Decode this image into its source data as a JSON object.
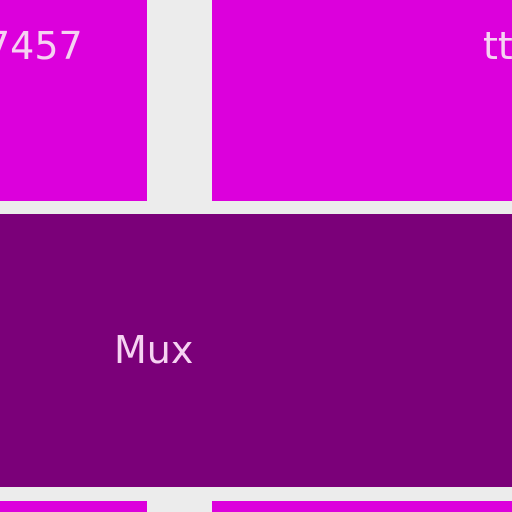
{
  "tiles": [
    {
      "label": "7457",
      "color": "#dc00dc"
    },
    {
      "label": "tt",
      "color": "#dc00dc"
    },
    {
      "label": "Mux",
      "color": "#7b0079"
    },
    {
      "label": "",
      "color": "#dc00dc"
    },
    {
      "label": "",
      "color": "#dc00dc"
    }
  ],
  "background": "#ececec"
}
